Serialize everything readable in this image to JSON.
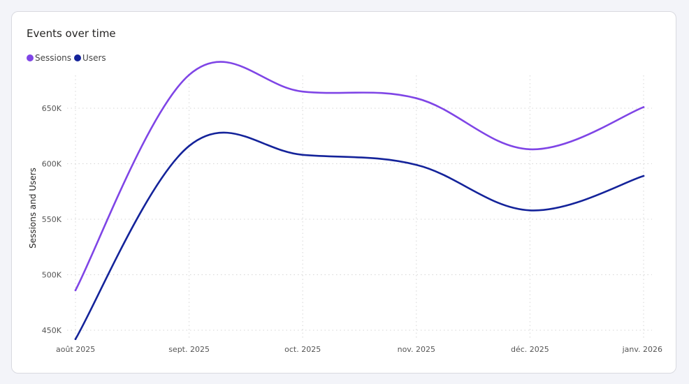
{
  "chart_data": {
    "type": "line",
    "title": "Events over time",
    "ylabel": "Sessions and Users",
    "xlabel": "",
    "categories": [
      "août 2025",
      "sept. 2025",
      "oct. 2025",
      "nov. 2025",
      "déc. 2025",
      "janv. 2026"
    ],
    "y_ticks": [
      "450K",
      "500K",
      "550K",
      "600K",
      "650K"
    ],
    "y_tick_values": [
      450000,
      500000,
      550000,
      600000,
      650000
    ],
    "ylim": [
      440000,
      690000
    ],
    "grid": true,
    "legend_position": "top-left",
    "series": [
      {
        "name": "Sessions",
        "color": "#7f45e6",
        "values": [
          486000,
          680000,
          665000,
          659000,
          613000,
          651000
        ]
      },
      {
        "name": "Users",
        "color": "#14239a",
        "values": [
          442000,
          616000,
          608000,
          599000,
          558000,
          589000
        ]
      }
    ]
  }
}
